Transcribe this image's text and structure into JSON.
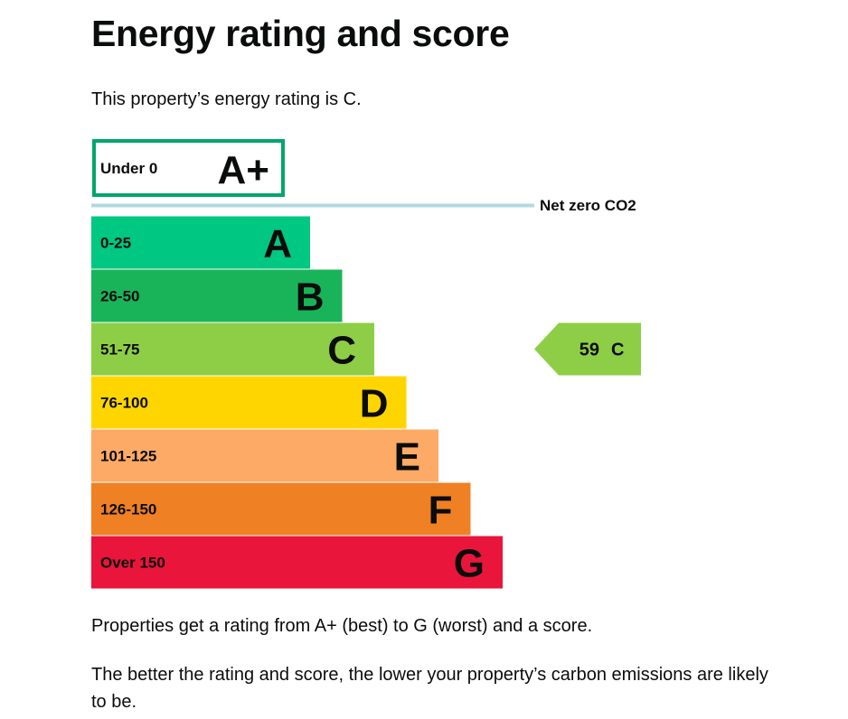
{
  "page": {
    "title": "Energy rating and score",
    "intro": "This property’s energy rating is C.",
    "paragraphs": [
      "Properties get a rating from A+ (best) to G (worst) and a score.",
      "The better the rating and score, the lower your property’s carbon emissions are likely to be."
    ]
  },
  "chart_data": {
    "type": "bar",
    "top_band": {
      "range": "Under 0",
      "letter": "A+",
      "color": "#00a66c"
    },
    "net_zero_label": "Net zero CO2",
    "bands": [
      {
        "range": "0-25",
        "letter": "A",
        "color": "#00c781"
      },
      {
        "range": "26-50",
        "letter": "B",
        "color": "#19b459"
      },
      {
        "range": "51-75",
        "letter": "C",
        "color": "#8dce46"
      },
      {
        "range": "76-100",
        "letter": "D",
        "color": "#ffd500"
      },
      {
        "range": "101-125",
        "letter": "E",
        "color": "#fcaa65"
      },
      {
        "range": "126-150",
        "letter": "F",
        "color": "#ef8023"
      },
      {
        "range": "Over 150",
        "letter": "G",
        "color": "#e9153b"
      }
    ],
    "current": {
      "score": 59,
      "letter": "C",
      "color": "#8dce46"
    }
  }
}
